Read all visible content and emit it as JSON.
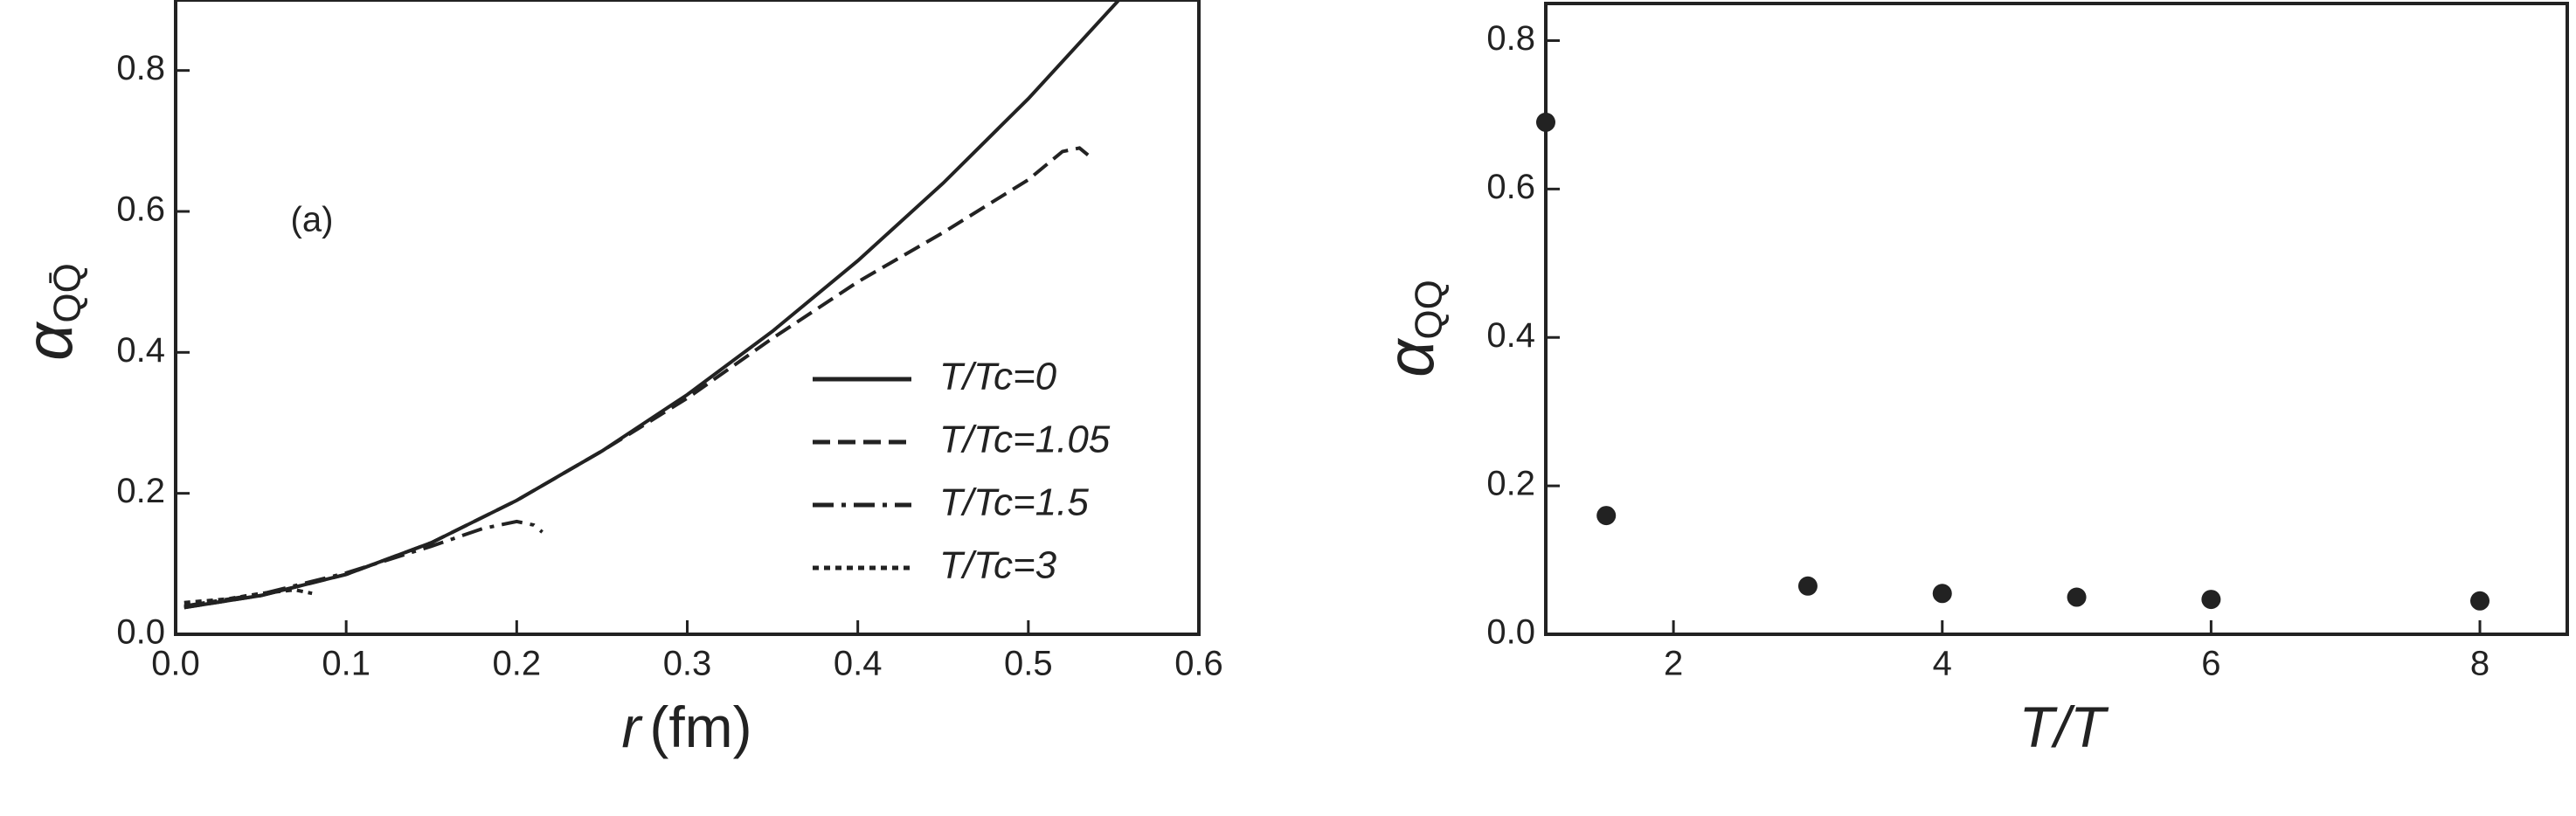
{
  "chart_data": [
    {
      "type": "line",
      "annotation": "(a)",
      "xlabel": {
        "symbol": "r",
        "unit": "(fm)"
      },
      "ylabel": {
        "symbol": "α",
        "subscript": "QQ̄"
      },
      "xlim": [
        0,
        0.6
      ],
      "ylim": [
        0,
        0.9
      ],
      "xticks": [
        {
          "value": 0,
          "label": "0.0"
        },
        0.1,
        0.2,
        0.3,
        0.4,
        0.5,
        0.6
      ],
      "yticks": [
        {
          "value": 0,
          "label": "0.0"
        },
        0.2,
        0.4,
        0.6,
        0.8
      ],
      "series": [
        {
          "name": "T/Tc=0",
          "color": "#222222",
          "dash": "solid",
          "x": [
            0.005,
            0.05,
            0.1,
            0.15,
            0.2,
            0.25,
            0.3,
            0.35,
            0.4,
            0.45,
            0.5,
            0.555
          ],
          "values": [
            0.038,
            0.055,
            0.085,
            0.13,
            0.19,
            0.26,
            0.34,
            0.43,
            0.53,
            0.64,
            0.76,
            0.905
          ]
        },
        {
          "name": "T/Tc=1.05",
          "color": "#222222",
          "dash": "dashed",
          "x": [
            0.005,
            0.05,
            0.1,
            0.15,
            0.2,
            0.25,
            0.3,
            0.35,
            0.4,
            0.45,
            0.5,
            0.52,
            0.53,
            0.535
          ],
          "values": [
            0.038,
            0.055,
            0.085,
            0.13,
            0.19,
            0.26,
            0.335,
            0.42,
            0.5,
            0.57,
            0.645,
            0.685,
            0.69,
            0.68
          ]
        },
        {
          "name": "T/Tc=1.5",
          "color": "#222222",
          "dash": "dashdot",
          "x": [
            0.005,
            0.05,
            0.1,
            0.15,
            0.18,
            0.2,
            0.21,
            0.215
          ],
          "values": [
            0.04,
            0.057,
            0.087,
            0.125,
            0.15,
            0.16,
            0.155,
            0.145
          ]
        },
        {
          "name": "T/Tc=3",
          "color": "#222222",
          "dash": "dotted",
          "x": [
            0.005,
            0.03,
            0.05,
            0.07,
            0.08
          ],
          "values": [
            0.045,
            0.05,
            0.058,
            0.063,
            0.058
          ]
        }
      ]
    },
    {
      "type": "scatter",
      "xlabel": {
        "symbol": "T/T"
      },
      "ylabel": {
        "symbol": "α",
        "subscript": "QQ"
      },
      "xlim": [
        1.05,
        8.65
      ],
      "ylim": [
        0,
        0.85
      ],
      "xticks": [
        2,
        4,
        6,
        8
      ],
      "yticks": [
        {
          "value": 0,
          "label": "0.0"
        },
        0.2,
        0.4,
        0.6,
        0.8
      ],
      "color": "#222222",
      "x": [
        1.05,
        1.5,
        3,
        4,
        5,
        6,
        8
      ],
      "values": [
        0.69,
        0.16,
        0.065,
        0.055,
        0.05,
        0.047,
        0.045
      ]
    }
  ]
}
